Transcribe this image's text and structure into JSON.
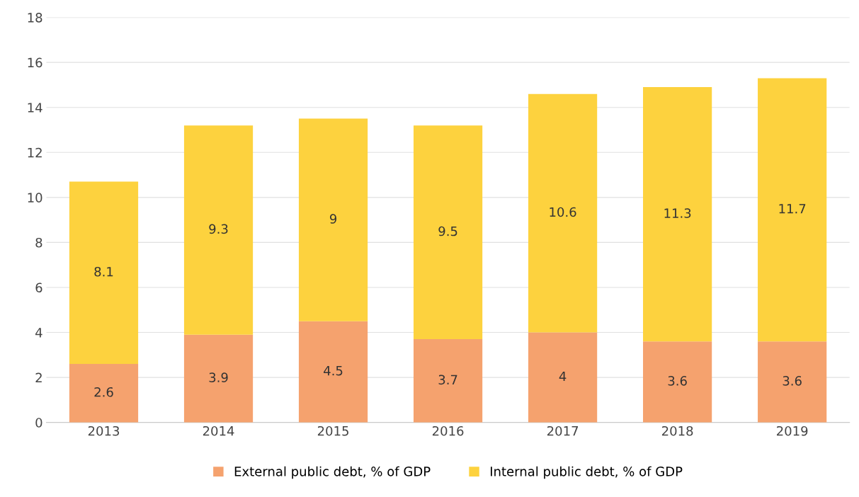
{
  "chart_data": {
    "type": "bar",
    "stacked": true,
    "categories": [
      "2013",
      "2014",
      "2015",
      "2016",
      "2017",
      "2018",
      "2019"
    ],
    "series": [
      {
        "name": "External public debt, % of GDP",
        "color": "#f5a26e",
        "values": [
          2.6,
          3.9,
          4.5,
          3.7,
          4,
          3.6,
          3.6
        ]
      },
      {
        "name": "Internal public debt, % of GDP",
        "color": "#fdd23e",
        "values": [
          8.1,
          9.3,
          9,
          9.5,
          10.6,
          11.3,
          11.7
        ]
      }
    ],
    "ylim": [
      0,
      18
    ],
    "yticks": [
      0,
      2,
      4,
      6,
      8,
      10,
      12,
      14,
      16,
      18
    ],
    "grid": "y",
    "legend": "bottom",
    "data_labels": true
  }
}
